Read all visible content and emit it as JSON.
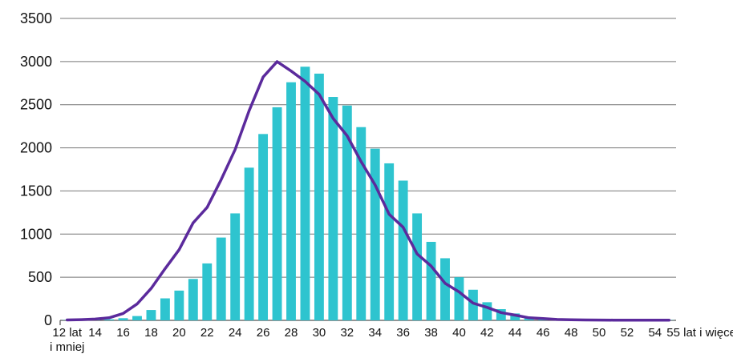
{
  "chart_data": {
    "type": "bar",
    "title": "",
    "xlabel": "",
    "ylabel": "",
    "ylim": [
      0,
      3500
    ],
    "yticks": [
      0,
      500,
      1000,
      1500,
      2000,
      2500,
      3000,
      3500
    ],
    "grid": true,
    "legend": "none",
    "categories": [
      "12 lat i mniej",
      "13",
      "14",
      "15",
      "16",
      "17",
      "18",
      "19",
      "20",
      "21",
      "22",
      "23",
      "24",
      "25",
      "26",
      "27",
      "28",
      "29",
      "30",
      "31",
      "32",
      "33",
      "34",
      "35",
      "36",
      "37",
      "38",
      "39",
      "40",
      "41",
      "42",
      "43",
      "44",
      "45",
      "46",
      "47",
      "48",
      "49",
      "50",
      "51",
      "52",
      "53",
      "54",
      "55 lat i więcej"
    ],
    "x_tick_labels": [
      {
        "category": "12 lat i mniej",
        "lines": [
          "12 lat",
          "i mniej"
        ]
      },
      {
        "category": "14",
        "lines": [
          "14"
        ]
      },
      {
        "category": "16",
        "lines": [
          "16"
        ]
      },
      {
        "category": "18",
        "lines": [
          "18"
        ]
      },
      {
        "category": "20",
        "lines": [
          "20"
        ]
      },
      {
        "category": "22",
        "lines": [
          "22"
        ]
      },
      {
        "category": "24",
        "lines": [
          "24"
        ]
      },
      {
        "category": "26",
        "lines": [
          "26"
        ]
      },
      {
        "category": "28",
        "lines": [
          "28"
        ]
      },
      {
        "category": "30",
        "lines": [
          "30"
        ]
      },
      {
        "category": "32",
        "lines": [
          "32"
        ]
      },
      {
        "category": "34",
        "lines": [
          "34"
        ]
      },
      {
        "category": "36",
        "lines": [
          "36"
        ]
      },
      {
        "category": "38",
        "lines": [
          "38"
        ]
      },
      {
        "category": "40",
        "lines": [
          "40"
        ]
      },
      {
        "category": "42",
        "lines": [
          "42"
        ]
      },
      {
        "category": "44",
        "lines": [
          "44"
        ]
      },
      {
        "category": "46",
        "lines": [
          "46"
        ]
      },
      {
        "category": "48",
        "lines": [
          "48"
        ]
      },
      {
        "category": "50",
        "lines": [
          "50"
        ]
      },
      {
        "category": "52",
        "lines": [
          "52"
        ]
      },
      {
        "category": "54",
        "lines": [
          "54"
        ]
      },
      {
        "category": "55 lat i więcej",
        "lines": [
          "55 lat i więcej"
        ]
      }
    ],
    "series": [
      {
        "type": "bar",
        "color": "#2ec4cf",
        "values": [
          3,
          3,
          5,
          12,
          25,
          50,
          120,
          255,
          345,
          480,
          660,
          960,
          1240,
          1770,
          2160,
          2470,
          2760,
          2940,
          2860,
          2590,
          2490,
          2240,
          1990,
          1820,
          1620,
          1240,
          910,
          720,
          500,
          355,
          210,
          130,
          80,
          40,
          25,
          15,
          10,
          8,
          6,
          5,
          4,
          3,
          3,
          3
        ]
      },
      {
        "type": "line",
        "color": "#5b2a9c",
        "values": [
          5,
          8,
          15,
          30,
          80,
          190,
          370,
          600,
          820,
          1130,
          1310,
          1630,
          1980,
          2430,
          2820,
          3000,
          2890,
          2770,
          2620,
          2340,
          2140,
          1840,
          1570,
          1230,
          1080,
          770,
          630,
          430,
          330,
          200,
          150,
          90,
          60,
          30,
          20,
          10,
          7,
          5,
          4,
          3,
          3,
          2,
          2,
          2
        ]
      }
    ]
  }
}
